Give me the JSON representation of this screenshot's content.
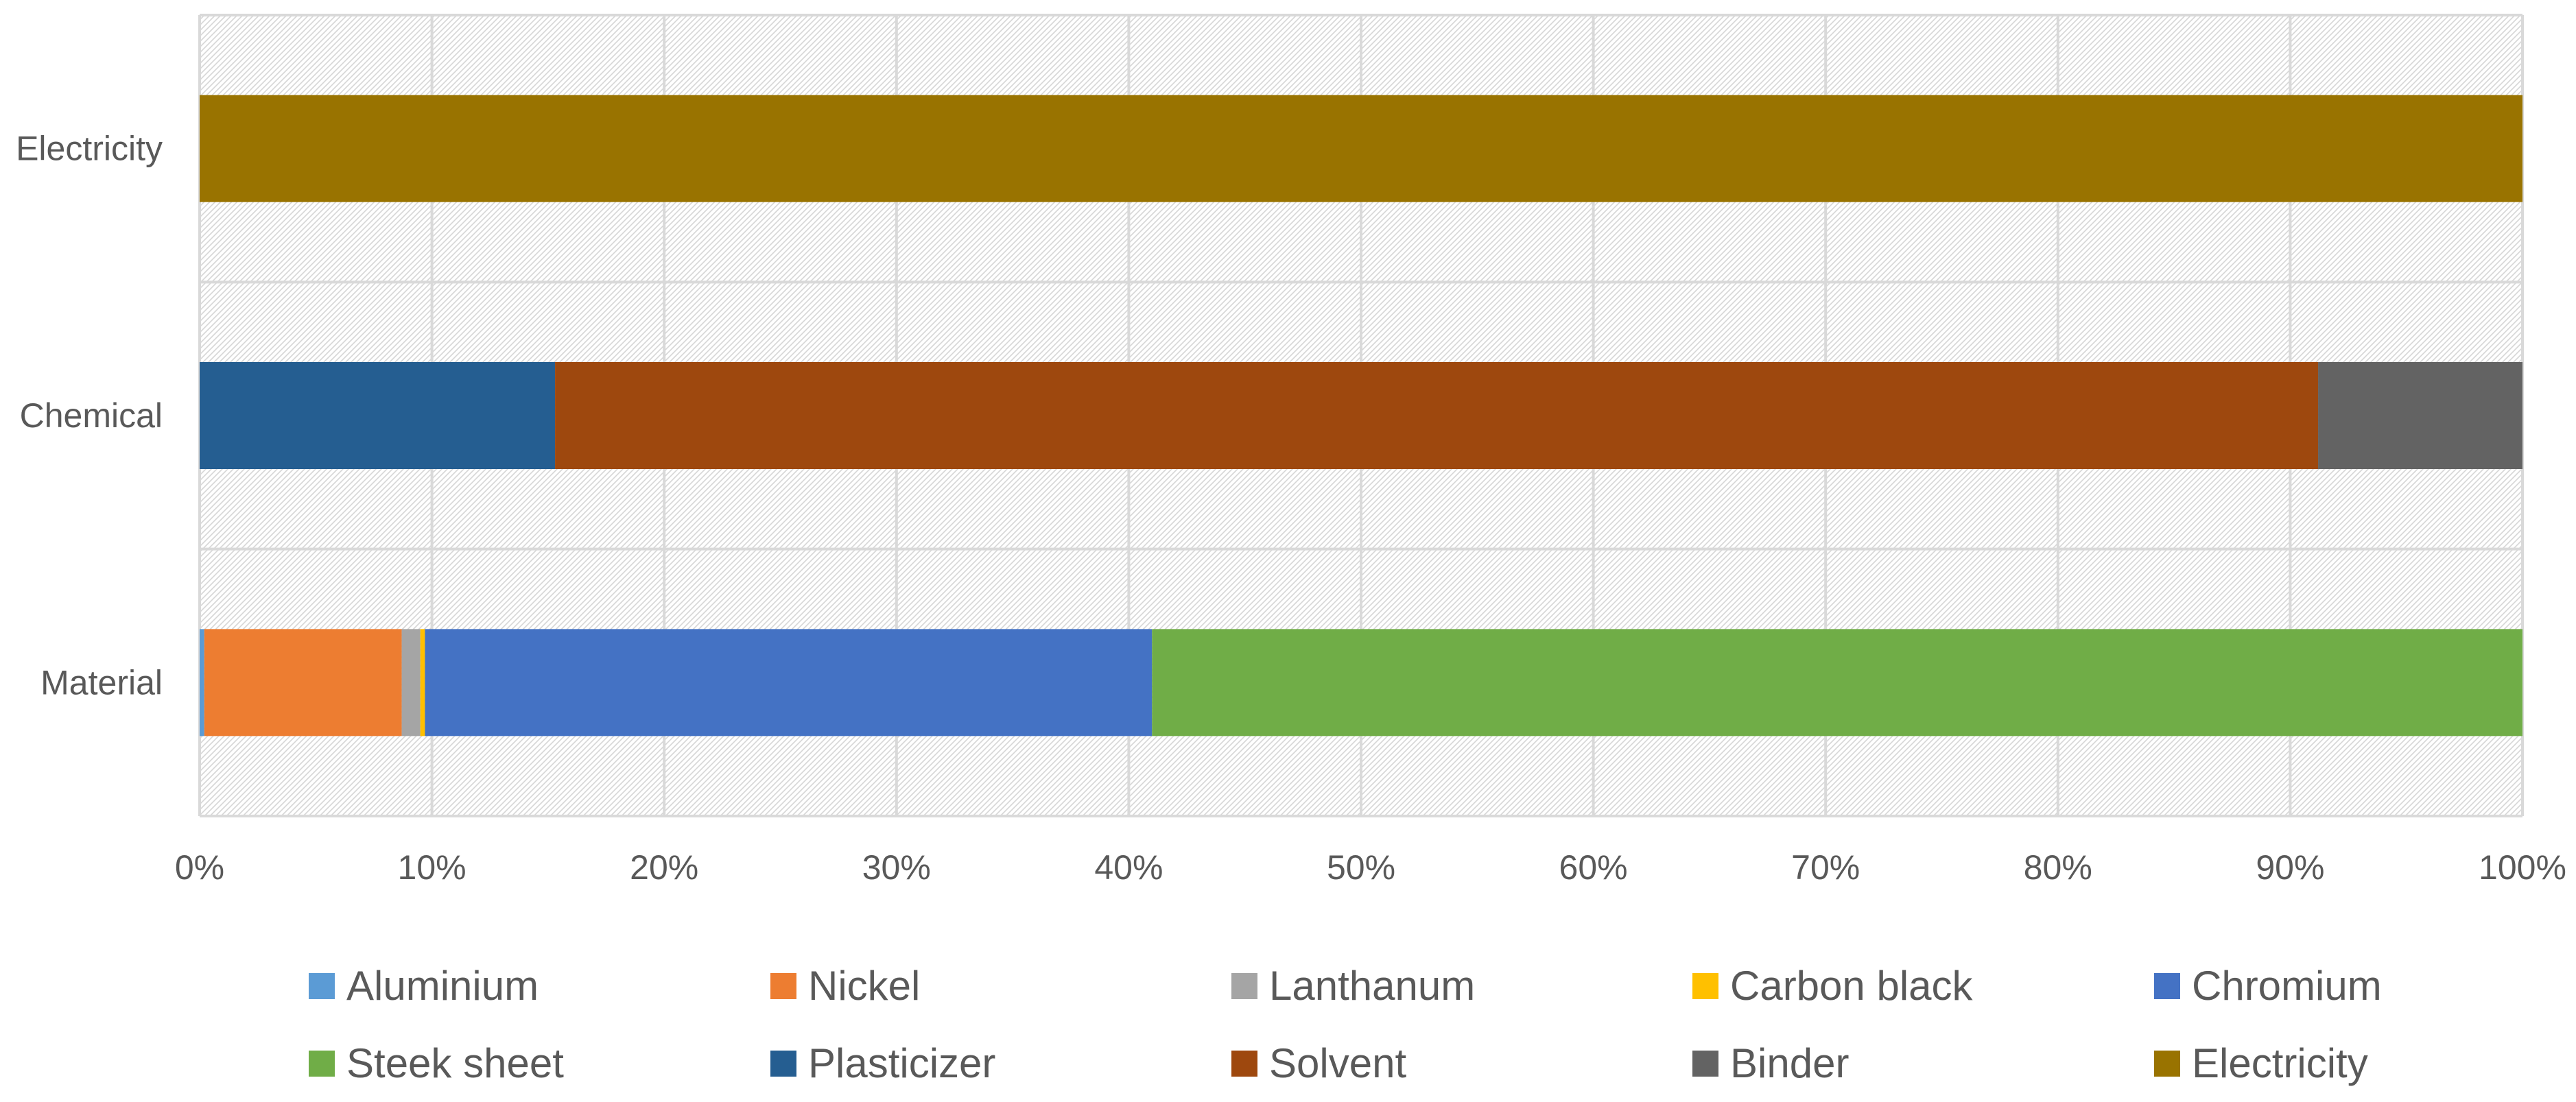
{
  "chart_data": {
    "type": "bar",
    "orientation": "horizontal",
    "stacked": "percent",
    "categories": [
      "Material",
      "Chemical",
      "Electricity"
    ],
    "x_ticks": [
      "0%",
      "10%",
      "20%",
      "30%",
      "40%",
      "50%",
      "60%",
      "70%",
      "80%",
      "90%",
      "100%"
    ],
    "xlim": [
      0,
      100
    ],
    "grid": true,
    "legend_position": "bottom",
    "series": [
      {
        "name": "Aluminium",
        "color": "#5B9BD5",
        "values": [
          0.2,
          0,
          0
        ]
      },
      {
        "name": "Nickel",
        "color": "#ED7D31",
        "values": [
          8.5,
          0,
          0
        ]
      },
      {
        "name": "Lanthanum",
        "color": "#A5A5A5",
        "values": [
          0.8,
          0,
          0
        ]
      },
      {
        "name": "Carbon black",
        "color": "#FFC000",
        "values": [
          0.2,
          0,
          0
        ]
      },
      {
        "name": "Chromium",
        "color": "#4472C4",
        "values": [
          31.3,
          0,
          0
        ]
      },
      {
        "name": "Steek sheet",
        "color": "#70AD47",
        "values": [
          59.0,
          0,
          0
        ]
      },
      {
        "name": "Plasticizer",
        "color": "#255E91",
        "values": [
          0,
          15.3,
          0
        ]
      },
      {
        "name": "Solvent",
        "color": "#9E480E",
        "values": [
          0,
          75.9,
          0
        ]
      },
      {
        "name": "Binder",
        "color": "#636363",
        "values": [
          0,
          8.8,
          0
        ]
      },
      {
        "name": "Electricity",
        "color": "#997300",
        "values": [
          0,
          0,
          100
        ]
      }
    ]
  }
}
